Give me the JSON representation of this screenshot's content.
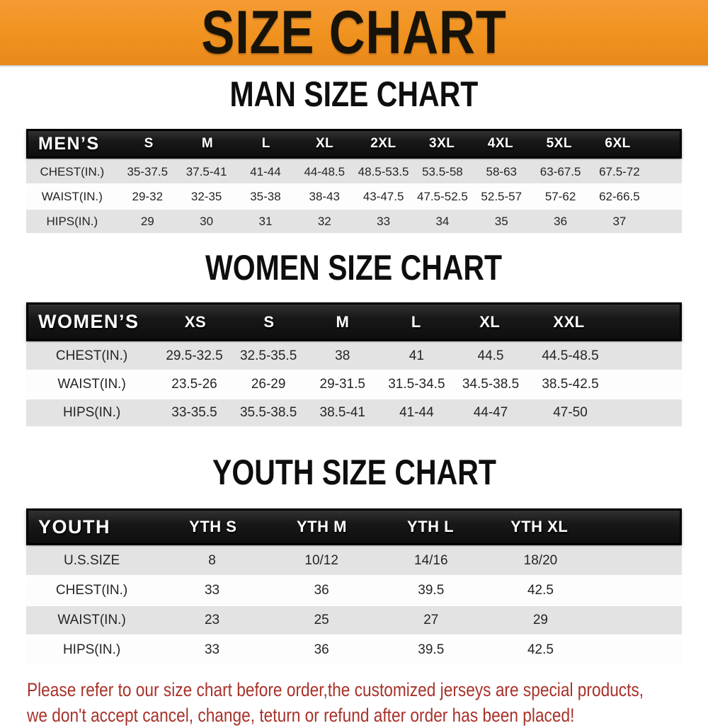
{
  "banner": {
    "title": "SIZE CHART",
    "bg_color": "#F0921E",
    "text_color": "#181309"
  },
  "colors": {
    "header_black": "#141414",
    "row_gray": "#E3E3E3",
    "row_white": "#FDFDFD",
    "note_red": "#A8322A"
  },
  "sections": [
    {
      "title": "MAN SIZE CHART",
      "table": {
        "header": [
          "MEN’S",
          "S",
          "M",
          "L",
          "XL",
          "2XL",
          "3XL",
          "4XL",
          "5XL",
          "6XL"
        ],
        "rows": [
          {
            "label": "CHEST(IN.)",
            "values": [
              "35-37.5",
              "37.5-41",
              "41-44",
              "44-48.5",
              "48.5-53.5",
              "53.5-58",
              "58-63",
              "63-67.5",
              "67.5-72"
            ]
          },
          {
            "label": "WAIST(IN.)",
            "values": [
              "29-32",
              "32-35",
              "35-38",
              "38-43",
              "43-47.5",
              "47.5-52.5",
              "52.5-57",
              "57-62",
              "62-66.5"
            ]
          },
          {
            "label": "HIPS(IN.)",
            "values": [
              "29",
              "30",
              "31",
              "32",
              "33",
              "34",
              "35",
              "36",
              "37"
            ]
          }
        ]
      }
    },
    {
      "title": "WOMEN SIZE CHART",
      "table": {
        "header": [
          "WOMEN’S",
          "XS",
          "S",
          "M",
          "L",
          "XL",
          "XXL"
        ],
        "rows": [
          {
            "label": "CHEST(IN.)",
            "values": [
              "29.5-32.5",
              "32.5-35.5",
              "38",
              "41",
              "44.5",
              "44.5-48.5"
            ]
          },
          {
            "label": "WAIST(IN.)",
            "values": [
              "23.5-26",
              "26-29",
              "29-31.5",
              "31.5-34.5",
              "34.5-38.5",
              "38.5-42.5"
            ]
          },
          {
            "label": "HIPS(IN.)",
            "values": [
              "33-35.5",
              "35.5-38.5",
              "38.5-41",
              "41-44",
              "44-47",
              "47-50"
            ]
          }
        ]
      }
    },
    {
      "title": "YOUTH SIZE CHART",
      "table": {
        "header": [
          "YOUTH",
          "YTH S",
          "YTH M",
          "YTH L",
          "YTH XL"
        ],
        "rows": [
          {
            "label": "U.S.SIZE",
            "values": [
              "8",
              "10/12",
              "14/16",
              "18/20"
            ]
          },
          {
            "label": "CHEST(IN.)",
            "values": [
              "33",
              "36",
              "39.5",
              "42.5"
            ]
          },
          {
            "label": "WAIST(IN.)",
            "values": [
              "23",
              "25",
              "27",
              "29"
            ]
          },
          {
            "label": "HIPS(IN.)",
            "values": [
              "33",
              "36",
              "39.5",
              "42.5"
            ]
          }
        ]
      }
    }
  ],
  "footer": {
    "lines": [
      "Please refer to our size chart before order,the customized jerseys are special products,",
      "we don't accept cancel, change, teturn or refund after order has been placed!"
    ]
  }
}
